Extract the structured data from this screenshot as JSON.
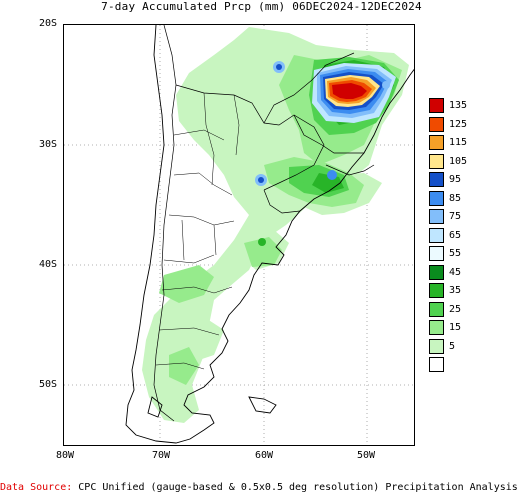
{
  "title": "7-day Accumulated Prcp (mm) 06DEC2024-12DEC2024",
  "axes": {
    "lat_labels": [
      "20S",
      "30S",
      "40S",
      "50S"
    ],
    "lon_labels": [
      "80W",
      "70W",
      "60W",
      "50W"
    ]
  },
  "legend": {
    "items": [
      {
        "label": "135",
        "color": "#d00000"
      },
      {
        "label": "125",
        "color": "#f04b00"
      },
      {
        "label": "115",
        "color": "#f5a028"
      },
      {
        "label": "105",
        "color": "#ffe68c"
      },
      {
        "label": "95",
        "color": "#1450c8"
      },
      {
        "label": "85",
        "color": "#3c8cf0"
      },
      {
        "label": "75",
        "color": "#82befa"
      },
      {
        "label": "65",
        "color": "#bfe6ff"
      },
      {
        "label": "55",
        "color": "#ecfaff"
      },
      {
        "label": "45",
        "color": "#0a8c1e"
      },
      {
        "label": "35",
        "color": "#28b428"
      },
      {
        "label": "25",
        "color": "#50d250"
      },
      {
        "label": "15",
        "color": "#96eb8c"
      },
      {
        "label": "5",
        "color": "#c8f5c0"
      },
      {
        "label": "",
        "color": "#ffffff"
      }
    ]
  },
  "footer": {
    "source_label": "Data Source:",
    "source_text": "CPC Unified (gauge-based & 0.5x0.5 deg resolution) Precipitation Analysis"
  }
}
